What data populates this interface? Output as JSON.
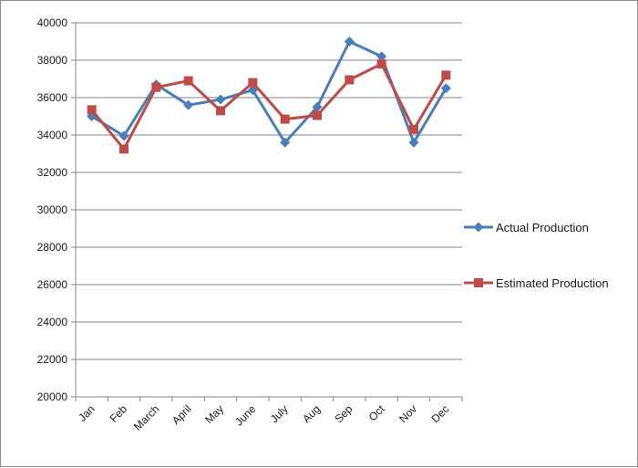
{
  "chart_data": {
    "type": "line",
    "title": "",
    "xlabel": "",
    "ylabel": "",
    "categories": [
      "Jan",
      "Feb",
      "March",
      "April",
      "May",
      "June",
      "July",
      "Aug",
      "Sep",
      "Oct",
      "Nov",
      "Dec"
    ],
    "ylim": [
      20000,
      40000
    ],
    "ytick_step": 2000,
    "yticks": [
      "20000",
      "22000",
      "24000",
      "26000",
      "28000",
      "30000",
      "32000",
      "34000",
      "36000",
      "38000",
      "40000"
    ],
    "grid": "horizontal",
    "legend": "right",
    "series": [
      {
        "name": "Actual Production",
        "color": "#4a7ebb",
        "marker": "diamond",
        "values": [
          35000,
          33950,
          36700,
          35600,
          35900,
          36400,
          33600,
          35500,
          39000,
          38200,
          33600,
          36500
        ]
      },
      {
        "name": "Estimated Production",
        "color": "#be4b48",
        "marker": "square",
        "values": [
          35350,
          33250,
          36550,
          36900,
          35300,
          36800,
          34850,
          35050,
          36950,
          37800,
          34300,
          37200
        ]
      }
    ]
  }
}
